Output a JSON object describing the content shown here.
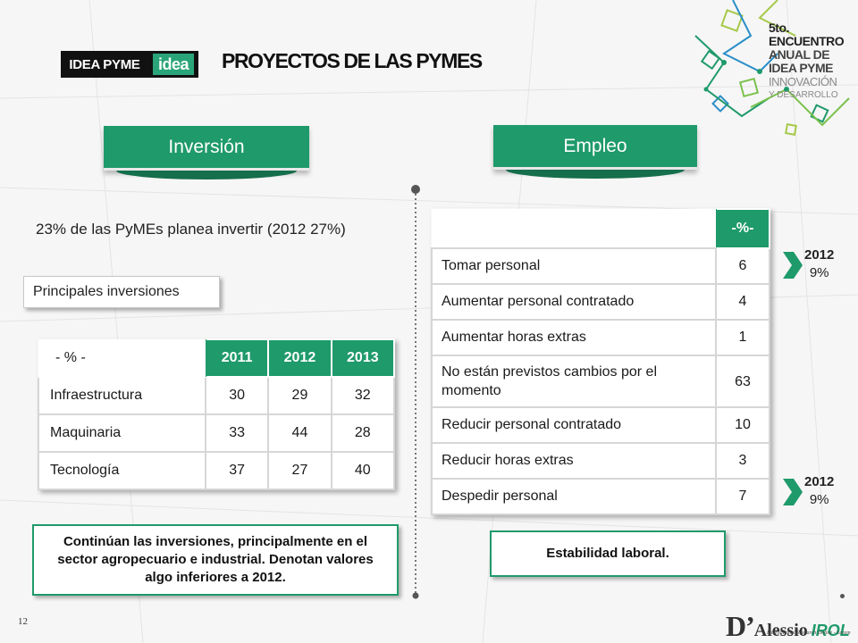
{
  "header": {
    "logo_left": "IDEA PYME",
    "logo_right": "idea",
    "title": "PROYECTOS DE LAS PYMES"
  },
  "event": {
    "line1": "5to.",
    "line2": "ENCUENTRO",
    "line3": "ANUAL DE",
    "line4": "IDEA PYME",
    "line5": "INNOVACIÓN",
    "line6": "Y DESARROLLO"
  },
  "inversion": {
    "banner": "Inversión",
    "intro": "23% de las PyMEs planea invertir (2012 27%)",
    "sub_label": "Principales inversiones",
    "table": {
      "corner": "- % -",
      "years": [
        "2011",
        "2012",
        "2013"
      ],
      "rows": [
        {
          "label": "Infraestructura",
          "values": [
            "30",
            "29",
            "32"
          ]
        },
        {
          "label": "Maquinaria",
          "values": [
            "33",
            "44",
            "28"
          ]
        },
        {
          "label": "Tecnología",
          "values": [
            "37",
            "27",
            "40"
          ]
        }
      ]
    },
    "note": "Continúan las inversiones, principalmente en el sector agropecuario e industrial. Denotan valores algo inferiores a 2012."
  },
  "empleo": {
    "banner": "Empleo",
    "table": {
      "header": "-%-",
      "rows": [
        {
          "label": "Tomar personal",
          "value": "6"
        },
        {
          "label": "Aumentar personal contratado",
          "value": "4"
        },
        {
          "label": "Aumentar horas extras",
          "value": "1"
        },
        {
          "label": "No están previstos cambios por el momento",
          "value": "63"
        },
        {
          "label": "Reducir personal contratado",
          "value": "10"
        },
        {
          "label": "Reducir  horas extras",
          "value": "3"
        },
        {
          "label": "Despedir personal",
          "value": "7"
        }
      ]
    },
    "callout_top": {
      "year": "2012",
      "value": "9%"
    },
    "callout_bottom": {
      "year": "2012",
      "value": "9%"
    },
    "note": "Estabilidad laboral."
  },
  "footer": {
    "page": "12",
    "brand_d": "D’",
    "brand_name": "Alessio",
    "brand_irol": "IROL",
    "brand_sub": "International Research Online - Lorem"
  },
  "colors": {
    "accent": "#1f9a6b",
    "accent_dark": "#156e4c"
  }
}
